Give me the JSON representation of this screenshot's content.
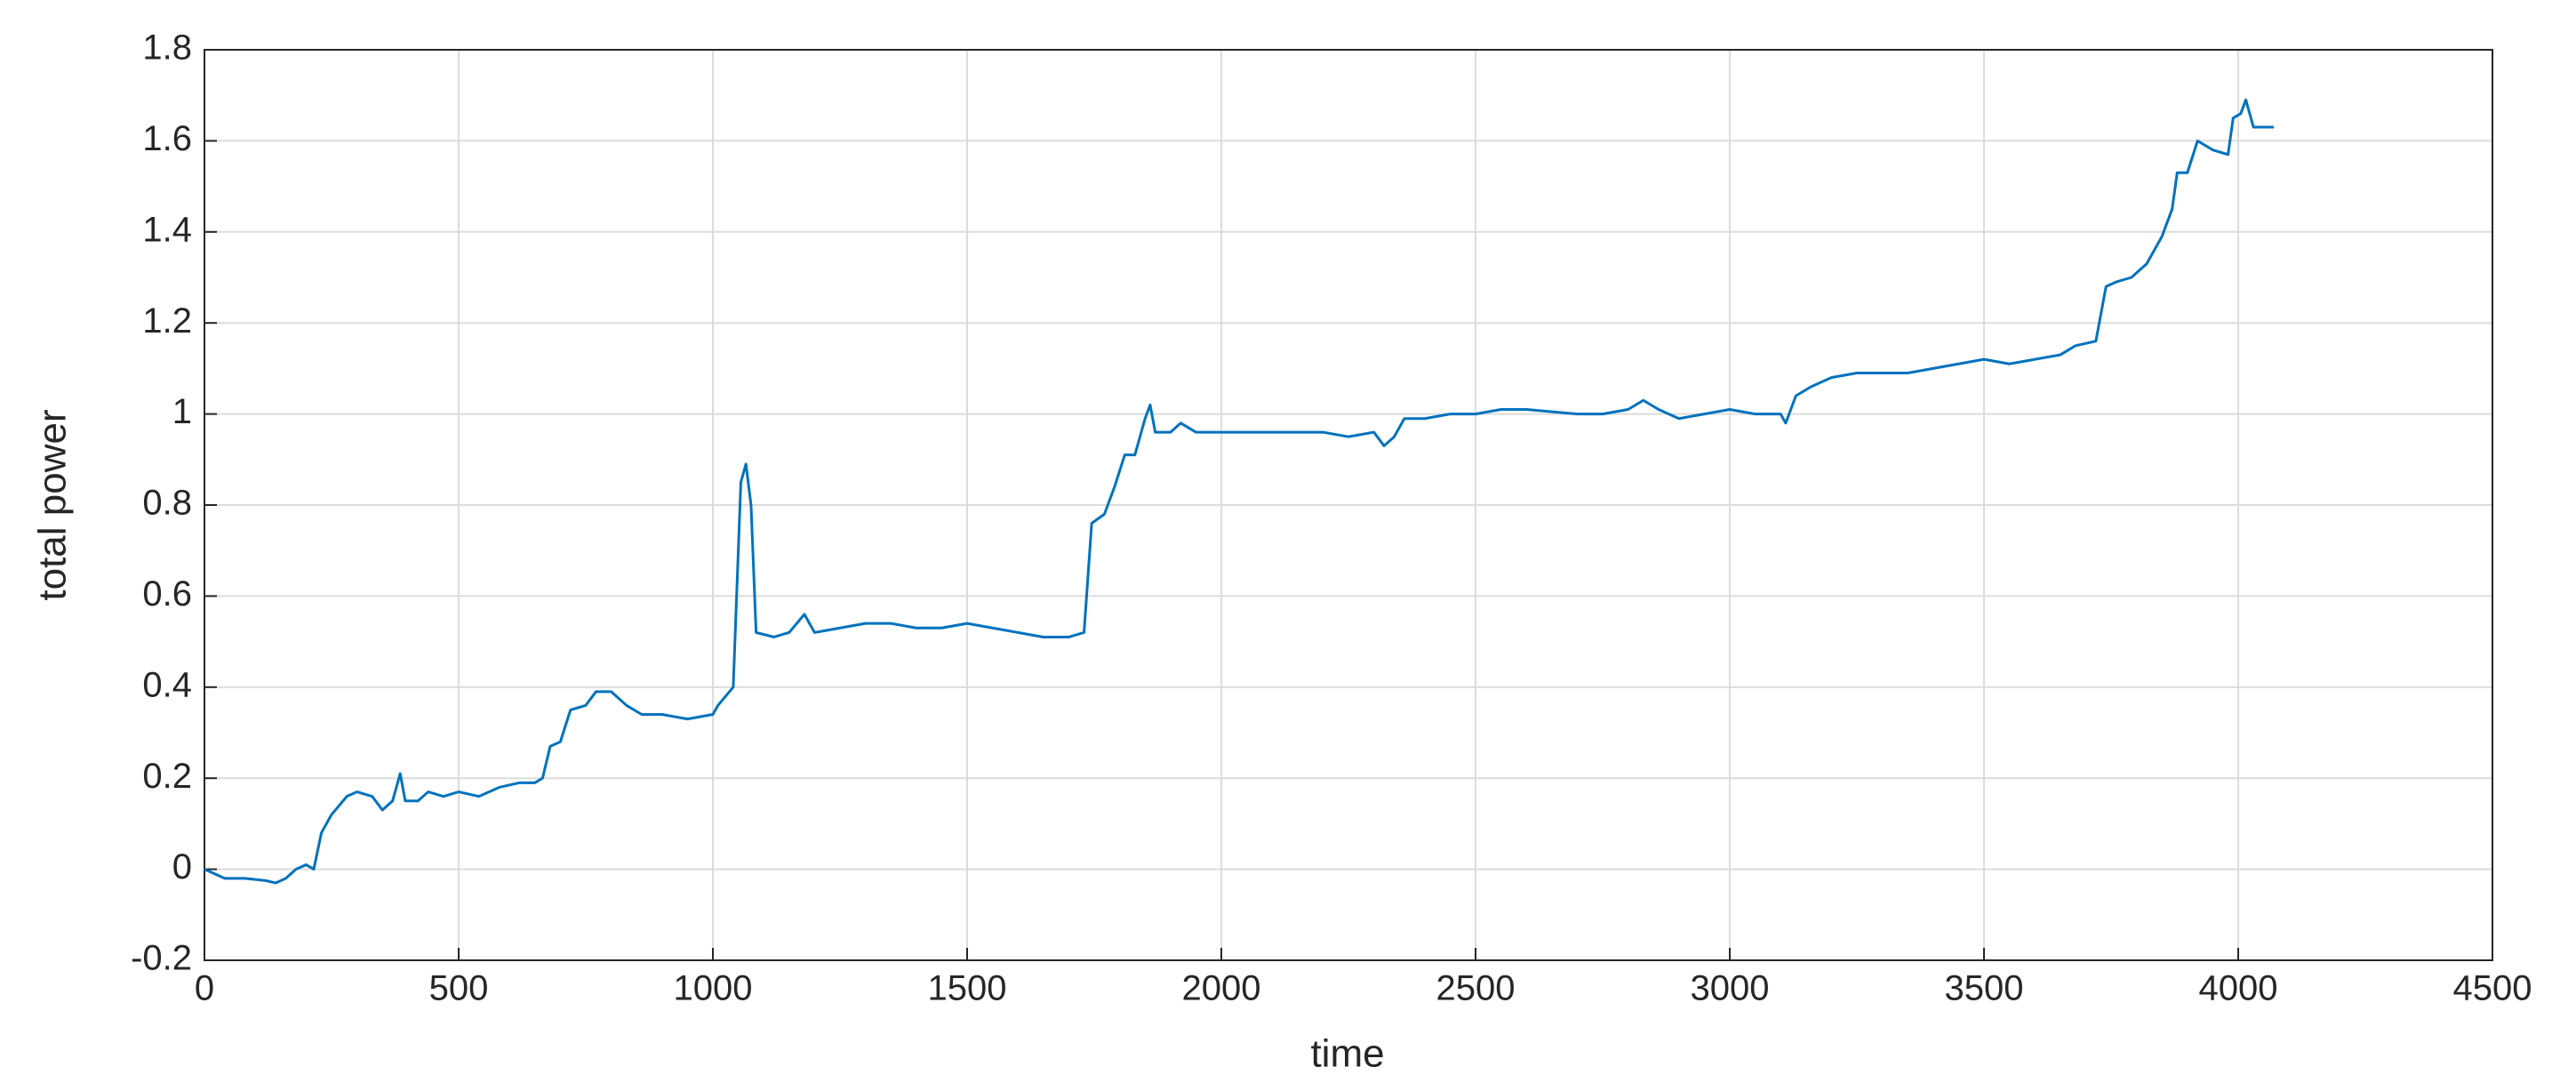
{
  "chart_data": {
    "type": "line",
    "xlabel": "time",
    "ylabel": "total power",
    "x": [
      0,
      20,
      40,
      80,
      120,
      140,
      160,
      180,
      200,
      215,
      230,
      250,
      280,
      300,
      330,
      350,
      370,
      385,
      395,
      420,
      440,
      470,
      500,
      540,
      580,
      620,
      650,
      665,
      680,
      700,
      720,
      750,
      770,
      800,
      830,
      860,
      900,
      950,
      1000,
      1010,
      1040,
      1055,
      1065,
      1075,
      1085,
      1120,
      1150,
      1180,
      1200,
      1250,
      1300,
      1350,
      1400,
      1450,
      1500,
      1550,
      1600,
      1650,
      1700,
      1730,
      1745,
      1770,
      1790,
      1810,
      1830,
      1850,
      1860,
      1870,
      1900,
      1920,
      1950,
      2000,
      2100,
      2200,
      2250,
      2300,
      2320,
      2340,
      2360,
      2400,
      2450,
      2500,
      2550,
      2600,
      2700,
      2750,
      2800,
      2830,
      2860,
      2900,
      2950,
      3000,
      3050,
      3100,
      3110,
      3130,
      3160,
      3200,
      3250,
      3300,
      3350,
      3400,
      3450,
      3500,
      3550,
      3600,
      3650,
      3680,
      3720,
      3740,
      3760,
      3790,
      3820,
      3850,
      3870,
      3880,
      3900,
      3920,
      3950,
      3980,
      3990,
      4005,
      4015,
      4030,
      4050,
      4070
    ],
    "values": [
      0,
      -0.01,
      -0.02,
      -0.02,
      -0.025,
      -0.03,
      -0.02,
      0.0,
      0.01,
      0.0,
      0.08,
      0.12,
      0.16,
      0.17,
      0.16,
      0.13,
      0.15,
      0.21,
      0.15,
      0.15,
      0.17,
      0.16,
      0.17,
      0.16,
      0.18,
      0.19,
      0.19,
      0.2,
      0.27,
      0.28,
      0.35,
      0.36,
      0.39,
      0.39,
      0.36,
      0.34,
      0.34,
      0.33,
      0.34,
      0.36,
      0.4,
      0.85,
      0.89,
      0.8,
      0.52,
      0.51,
      0.52,
      0.56,
      0.52,
      0.53,
      0.54,
      0.54,
      0.53,
      0.53,
      0.54,
      0.53,
      0.52,
      0.51,
      0.51,
      0.52,
      0.76,
      0.78,
      0.84,
      0.91,
      0.91,
      0.99,
      1.02,
      0.96,
      0.96,
      0.98,
      0.96,
      0.96,
      0.96,
      0.96,
      0.95,
      0.96,
      0.93,
      0.95,
      0.99,
      0.99,
      1.0,
      1.0,
      1.01,
      1.01,
      1.0,
      1.0,
      1.01,
      1.03,
      1.01,
      0.99,
      1.0,
      1.01,
      1.0,
      1.0,
      0.98,
      1.04,
      1.06,
      1.08,
      1.09,
      1.09,
      1.09,
      1.1,
      1.11,
      1.12,
      1.11,
      1.12,
      1.13,
      1.15,
      1.16,
      1.28,
      1.29,
      1.3,
      1.33,
      1.39,
      1.45,
      1.53,
      1.53,
      1.6,
      1.58,
      1.57,
      1.65,
      1.66,
      1.69,
      1.63,
      1.63,
      1.63
    ],
    "color": "#0072bd",
    "xlim": [
      0,
      4500
    ],
    "xticks": [
      0,
      500,
      1000,
      1500,
      2000,
      2500,
      3000,
      3500,
      4000,
      4500
    ],
    "ylim": [
      -0.2,
      1.8
    ],
    "yticks": [
      -0.2,
      0,
      0.2,
      0.4,
      0.6,
      0.8,
      1,
      1.2,
      1.4,
      1.6,
      1.8
    ],
    "grid": true
  }
}
